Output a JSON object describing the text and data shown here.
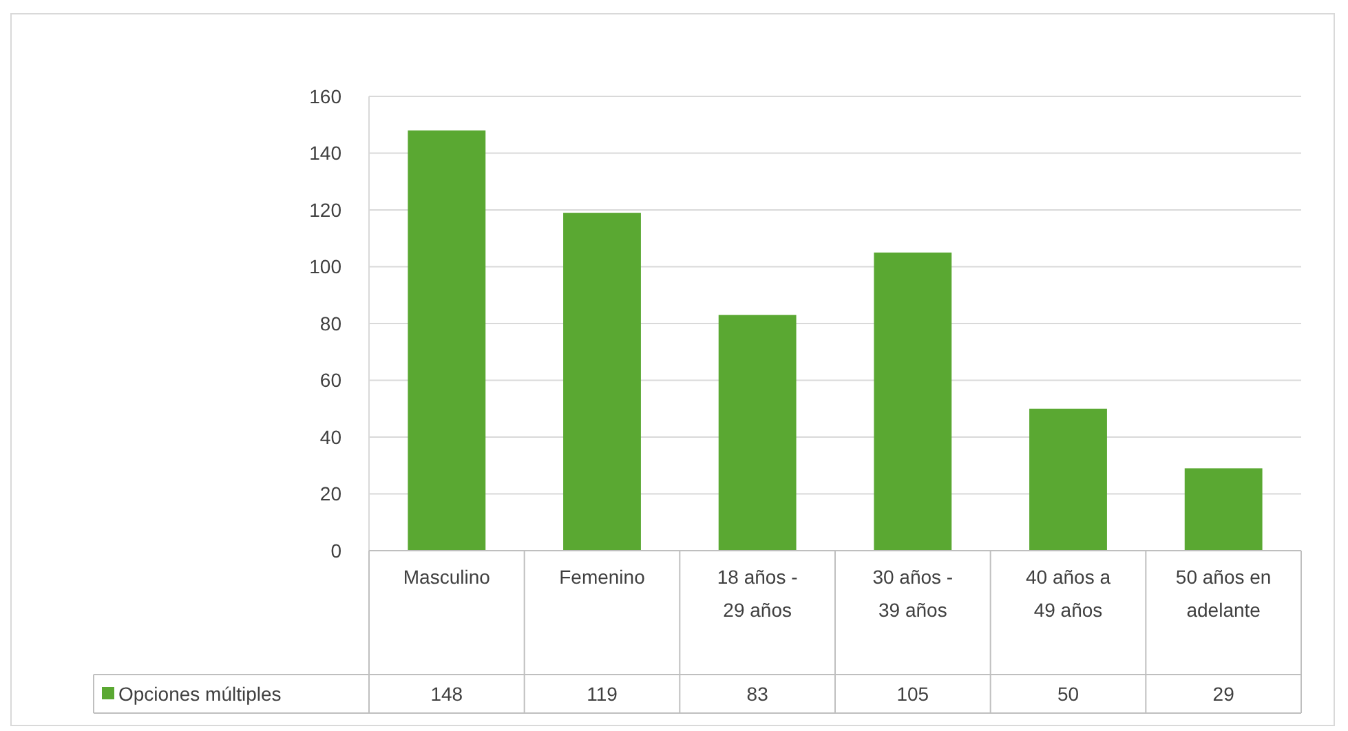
{
  "chart_data": {
    "type": "bar",
    "categories": [
      "Masculino",
      "Femenino",
      "18 años - 29 años",
      "30 años - 39 años",
      "40 años a 49 años",
      "50 años en adelante"
    ],
    "series": [
      {
        "name": "Opciones múltiples",
        "color": "#5aa832",
        "values": [
          148,
          119,
          83,
          105,
          50,
          29
        ]
      }
    ],
    "ylim": [
      0,
      160
    ],
    "yticks": [
      0,
      20,
      40,
      60,
      80,
      100,
      120,
      140,
      160
    ],
    "grid": "y",
    "data_labels": true,
    "legend": "bottom"
  }
}
